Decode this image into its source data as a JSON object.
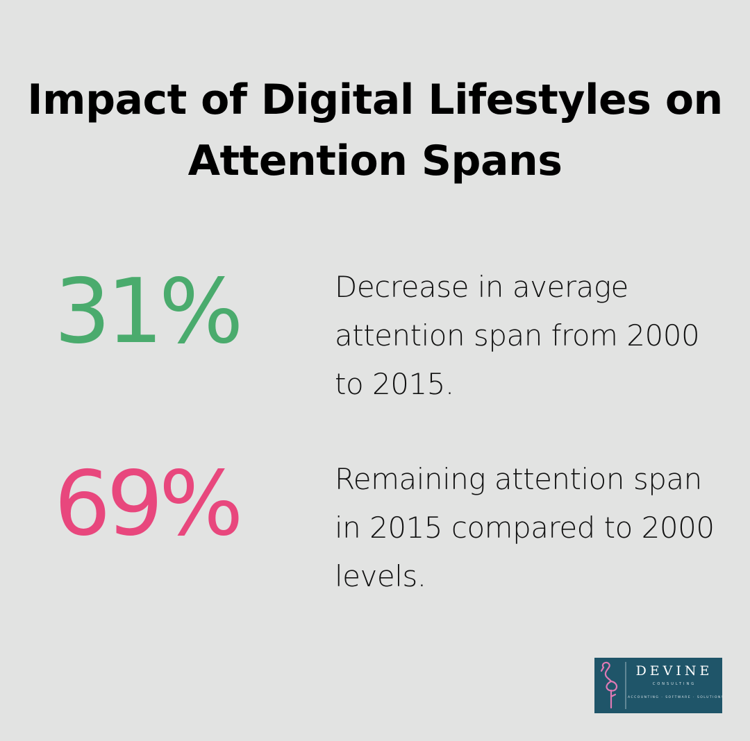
{
  "title": "Impact of Digital Lifestyles on Attention Spans",
  "stats": [
    {
      "value": "31%",
      "description": "Decrease in average attention span from 2000 to 2015.",
      "color": "#4aab6d"
    },
    {
      "value": "69%",
      "description": "Remaining attention span in 2015 compared to 2000 levels.",
      "color": "#e8477d"
    }
  ],
  "logo": {
    "name": "DEVINE",
    "subtitle": "CONSULTING",
    "tagline": "ACCOUNTING · SOFTWARE · SOLUTIONS",
    "icon": "flamingo-icon",
    "background": "#1f5569",
    "icon_color": "#e07ab5"
  },
  "background": "#e2e3e2"
}
